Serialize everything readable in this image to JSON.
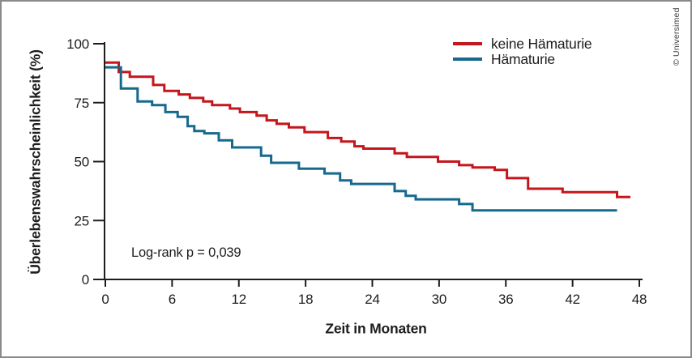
{
  "figure": {
    "copyright": "© Universimed"
  },
  "chart_data": {
    "type": "line",
    "subtype": "kaplan-meier-step-curves",
    "title": "",
    "xlabel": "Zeit in Monaten",
    "ylabel": "Überlebenswahrscheinlichkeit (%)",
    "xlim": [
      0,
      48
    ],
    "ylim": [
      0,
      100
    ],
    "x_ticks": [
      0,
      6,
      12,
      18,
      24,
      30,
      36,
      42,
      48
    ],
    "y_ticks": [
      0,
      25,
      50,
      75,
      100
    ],
    "grid": "off",
    "legend_position": "top-center-right",
    "annotation": "Log-rank p = 0,039",
    "axis_color": "#1d1d1b",
    "series": [
      {
        "name": "keine Hämaturie",
        "color": "#c4161c",
        "points": [
          [
            0,
            92
          ],
          [
            1.2,
            88
          ],
          [
            2.2,
            86
          ],
          [
            4.3,
            82.5
          ],
          [
            5.3,
            80
          ],
          [
            6.6,
            78.5
          ],
          [
            7.6,
            77
          ],
          [
            8.8,
            75.5
          ],
          [
            9.6,
            74
          ],
          [
            11.2,
            72.5
          ],
          [
            12.1,
            71
          ],
          [
            13.6,
            69.5
          ],
          [
            14.5,
            67.5
          ],
          [
            15.4,
            66
          ],
          [
            16.5,
            64.5
          ],
          [
            17.9,
            62.5
          ],
          [
            20.0,
            60
          ],
          [
            21.2,
            58.5
          ],
          [
            22.4,
            56.5
          ],
          [
            23.2,
            55.5
          ],
          [
            26.0,
            53.5
          ],
          [
            27.1,
            52
          ],
          [
            29.9,
            50
          ],
          [
            31.8,
            48.5
          ],
          [
            33.0,
            47.5
          ],
          [
            35.0,
            46.5
          ],
          [
            36.1,
            43
          ],
          [
            38.0,
            38.5
          ],
          [
            41.1,
            37
          ],
          [
            46.0,
            35
          ],
          [
            47.2,
            35
          ]
        ]
      },
      {
        "name": "Hämaturie",
        "color": "#16698d",
        "points": [
          [
            0,
            90
          ],
          [
            1.4,
            81
          ],
          [
            2.9,
            75.5
          ],
          [
            4.2,
            74
          ],
          [
            5.4,
            71
          ],
          [
            6.5,
            69
          ],
          [
            7.4,
            65
          ],
          [
            8.0,
            63
          ],
          [
            8.9,
            62
          ],
          [
            10.2,
            59
          ],
          [
            11.4,
            56
          ],
          [
            14.0,
            52.5
          ],
          [
            14.9,
            49.5
          ],
          [
            17.4,
            47
          ],
          [
            19.7,
            45
          ],
          [
            21.1,
            42
          ],
          [
            22.1,
            40.5
          ],
          [
            26.0,
            37.5
          ],
          [
            27.0,
            35.5
          ],
          [
            27.9,
            34
          ],
          [
            31.8,
            32
          ],
          [
            33.0,
            29.3
          ],
          [
            46.0,
            29.3
          ]
        ]
      }
    ]
  }
}
